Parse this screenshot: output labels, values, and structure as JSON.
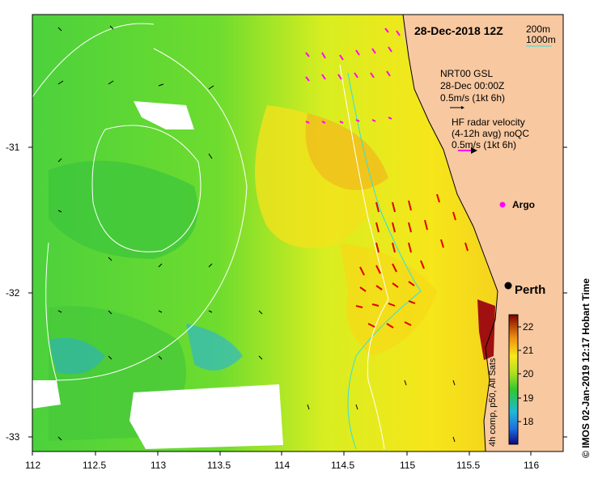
{
  "title": "28-Dec-2018 12Z",
  "depth_legend": {
    "line1": "200m",
    "line2": "1000m"
  },
  "gsl_legend": {
    "l1": "NRT00 GSL",
    "l2": "28-Dec 00:00Z",
    "l3": "0.5m/s (1kt 6h)"
  },
  "hf_legend": {
    "l1": "HF radar velocity",
    "l2": "(4-12h avg) noQC",
    "l3": "0.5m/s (1kt 6h)"
  },
  "argo_label": "Argo",
  "city_label": "Perth",
  "colorbar": {
    "label": "4h comp, p50, All Sats",
    "ticks": [
      "18",
      "19",
      "20",
      "21",
      "22"
    ]
  },
  "credit": "© IMOS 02-Jan-2019 12:17 Hobart Time",
  "x_ticks": [
    "112",
    "112.5",
    "113",
    "113.5",
    "114",
    "114.5",
    "115",
    "115.5",
    "116"
  ],
  "y_ticks": [
    "-31",
    "-32",
    "-33"
  ],
  "colors": {
    "land": "#f8c8a0",
    "hf_arrow": "#ff00ff",
    "radar_arrow": "#e00000",
    "contour200": "#30e0e0",
    "contour1000": "#ffffff"
  }
}
